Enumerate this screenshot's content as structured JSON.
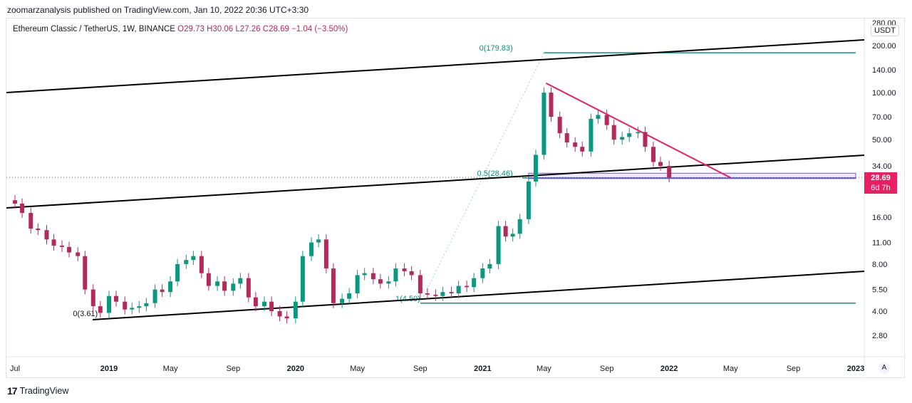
{
  "header": {
    "publish_line": "zoomarzanalysis published on TradingView.com, Jan 10, 2022 20:36 UTC+3:30"
  },
  "legend": {
    "symbol": "Ethereum Classic / TetherUS, 1W, BINANCE",
    "open": "O29.73",
    "high": "H30.06",
    "low": "L27.26",
    "close": "C28.69",
    "change": "−1.04 (−3.50%)"
  },
  "price_axis": {
    "quote_badge": "USDT",
    "current_price": "28.69",
    "countdown": "6d 7h",
    "scale_mode_button": "A"
  },
  "footer": {
    "brand": "TradingView",
    "logo_icon": "tradingview-logo-icon"
  },
  "colors": {
    "up": "#089981",
    "down": "#b5285a",
    "fib_level": "#0f8f80",
    "trendline": "#000000",
    "downtrend": "#e91e63",
    "price_tag": "#e91e63",
    "zone": "#7c4dff"
  },
  "chart_data": {
    "type": "candlestick",
    "title": "Ethereum Classic / TetherUS, 1W, BINANCE",
    "y_scale": "log",
    "ylim": [
      2.4,
      280
    ],
    "y_ticks": [
      "280.00",
      "200.00",
      "140.00",
      "100.00",
      "70.00",
      "50.00",
      "34.00",
      "16.00",
      "11.00",
      "8.00",
      "5.50",
      "4.00",
      "2.80"
    ],
    "x_ticks": [
      "Jul",
      "2019",
      "May",
      "Sep",
      "2020",
      "May",
      "Sep",
      "2021",
      "May",
      "Sep",
      "2022",
      "May",
      "Sep",
      "2023"
    ],
    "x_tick_dates": [
      "2018-07-01",
      "2019-01-01",
      "2019-05-01",
      "2019-09-01",
      "2020-01-01",
      "2020-05-01",
      "2020-09-01",
      "2021-01-01",
      "2021-05-01",
      "2021-09-01",
      "2022-01-01",
      "2022-05-01",
      "2022-09-01",
      "2023-01-01"
    ],
    "fib_annotations": [
      {
        "label": "0(179.83)",
        "price": 179.83
      },
      {
        "label": "0.5(28.46)",
        "price": 28.46
      },
      {
        "label": "1(4.50)",
        "price": 4.5
      },
      {
        "label": "0(3.61)",
        "price": 3.61
      }
    ],
    "last_price": 28.69,
    "close_points": [
      {
        "date": "2018-06-15",
        "close": 20.5
      },
      {
        "date": "2018-07-01",
        "close": 19.5
      },
      {
        "date": "2018-07-15",
        "close": 17.0
      },
      {
        "date": "2018-08-01",
        "close": 13.5
      },
      {
        "date": "2018-08-15",
        "close": 13.2
      },
      {
        "date": "2018-09-01",
        "close": 11.5
      },
      {
        "date": "2018-09-15",
        "close": 10.5
      },
      {
        "date": "2018-10-01",
        "close": 10.3
      },
      {
        "date": "2018-10-15",
        "close": 9.5
      },
      {
        "date": "2018-11-01",
        "close": 9.0
      },
      {
        "date": "2018-11-15",
        "close": 5.5
      },
      {
        "date": "2018-12-01",
        "close": 4.3
      },
      {
        "date": "2018-12-15",
        "close": 3.9
      },
      {
        "date": "2019-01-01",
        "close": 5.0
      },
      {
        "date": "2019-01-15",
        "close": 4.6
      },
      {
        "date": "2019-02-01",
        "close": 4.1
      },
      {
        "date": "2019-02-15",
        "close": 4.2
      },
      {
        "date": "2019-03-01",
        "close": 4.3
      },
      {
        "date": "2019-03-15",
        "close": 4.5
      },
      {
        "date": "2019-04-01",
        "close": 5.5
      },
      {
        "date": "2019-04-15",
        "close": 5.3
      },
      {
        "date": "2019-05-01",
        "close": 6.2
      },
      {
        "date": "2019-05-15",
        "close": 8.0
      },
      {
        "date": "2019-06-01",
        "close": 8.5
      },
      {
        "date": "2019-06-15",
        "close": 9.0
      },
      {
        "date": "2019-07-01",
        "close": 7.0
      },
      {
        "date": "2019-07-15",
        "close": 5.8
      },
      {
        "date": "2019-08-01",
        "close": 6.2
      },
      {
        "date": "2019-08-15",
        "close": 5.4
      },
      {
        "date": "2019-09-01",
        "close": 6.0
      },
      {
        "date": "2019-09-15",
        "close": 6.5
      },
      {
        "date": "2019-10-01",
        "close": 4.9
      },
      {
        "date": "2019-10-15",
        "close": 4.3
      },
      {
        "date": "2019-11-01",
        "close": 4.6
      },
      {
        "date": "2019-11-15",
        "close": 4.0
      },
      {
        "date": "2019-12-01",
        "close": 3.7
      },
      {
        "date": "2019-12-15",
        "close": 3.6
      },
      {
        "date": "2020-01-01",
        "close": 4.6
      },
      {
        "date": "2020-01-15",
        "close": 9.0
      },
      {
        "date": "2020-02-01",
        "close": 11.0
      },
      {
        "date": "2020-02-15",
        "close": 11.5
      },
      {
        "date": "2020-03-01",
        "close": 7.5
      },
      {
        "date": "2020-03-15",
        "close": 4.5
      },
      {
        "date": "2020-04-01",
        "close": 4.8
      },
      {
        "date": "2020-04-15",
        "close": 5.2
      },
      {
        "date": "2020-05-01",
        "close": 6.8
      },
      {
        "date": "2020-05-15",
        "close": 7.0
      },
      {
        "date": "2020-06-01",
        "close": 6.4
      },
      {
        "date": "2020-06-15",
        "close": 6.0
      },
      {
        "date": "2020-07-01",
        "close": 6.2
      },
      {
        "date": "2020-07-15",
        "close": 7.5
      },
      {
        "date": "2020-08-01",
        "close": 7.2
      },
      {
        "date": "2020-08-15",
        "close": 6.8
      },
      {
        "date": "2020-09-01",
        "close": 5.2
      },
      {
        "date": "2020-09-15",
        "close": 5.1
      },
      {
        "date": "2020-10-01",
        "close": 5.0
      },
      {
        "date": "2020-10-15",
        "close": 5.3
      },
      {
        "date": "2020-11-01",
        "close": 5.2
      },
      {
        "date": "2020-11-15",
        "close": 5.8
      },
      {
        "date": "2020-12-01",
        "close": 5.7
      },
      {
        "date": "2020-12-15",
        "close": 6.5
      },
      {
        "date": "2021-01-01",
        "close": 7.5
      },
      {
        "date": "2021-01-15",
        "close": 8.0
      },
      {
        "date": "2021-02-01",
        "close": 14.0
      },
      {
        "date": "2021-02-15",
        "close": 12.0
      },
      {
        "date": "2021-03-01",
        "close": 12.5
      },
      {
        "date": "2021-03-15",
        "close": 15.5
      },
      {
        "date": "2021-04-01",
        "close": 27.0
      },
      {
        "date": "2021-04-15",
        "close": 40.0
      },
      {
        "date": "2021-05-01",
        "close": 100.0
      },
      {
        "date": "2021-05-15",
        "close": 70.0
      },
      {
        "date": "2021-06-01",
        "close": 55.0
      },
      {
        "date": "2021-06-15",
        "close": 48.0
      },
      {
        "date": "2021-07-01",
        "close": 45.0
      },
      {
        "date": "2021-07-15",
        "close": 42.0
      },
      {
        "date": "2021-08-01",
        "close": 68.0
      },
      {
        "date": "2021-08-15",
        "close": 72.0
      },
      {
        "date": "2021-09-01",
        "close": 62.0
      },
      {
        "date": "2021-09-15",
        "close": 50.0
      },
      {
        "date": "2021-10-01",
        "close": 52.0
      },
      {
        "date": "2021-10-15",
        "close": 55.0
      },
      {
        "date": "2021-11-01",
        "close": 56.0
      },
      {
        "date": "2021-11-15",
        "close": 45.0
      },
      {
        "date": "2021-12-01",
        "close": 36.0
      },
      {
        "date": "2021-12-15",
        "close": 34.0
      },
      {
        "date": "2022-01-01",
        "close": 28.69
      }
    ]
  }
}
